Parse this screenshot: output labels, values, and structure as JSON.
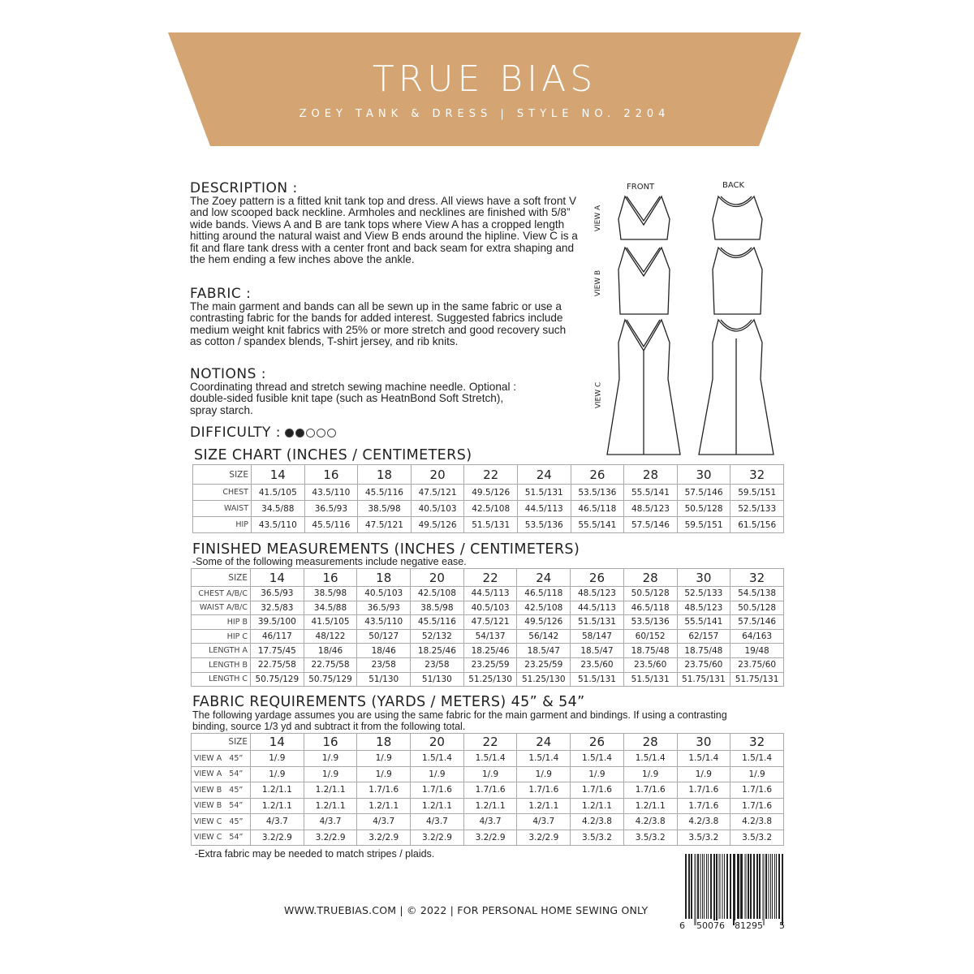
{
  "header": {
    "brand": "TRUE BIAS",
    "subtitle": "ZOEY TANK & DRESS | STYLE NO. 2204",
    "color": "#d4a473"
  },
  "description": {
    "heading": "DESCRIPTION :",
    "text": "The Zoey pattern is a fitted knit tank top and dress. All views have a soft front V and low scooped back neckline. Armholes and necklines are finished with 5/8” wide bands. Views A and B are tank tops where View A has a cropped length hitting around the natural waist and View B ends around the hipline. View C is a fit and flare tank dress with a center front and back seam for extra shaping and the hem ending a few inches above the ankle."
  },
  "fabric": {
    "heading": "FABRIC :",
    "text": "The main garment and bands can all be sewn up in the same fabric or use a contrasting fabric for the bands for added interest. Suggested fabrics include medium weight knit fabrics with 25% or more stretch and good recovery such as cotton / spandex blends, T-shirt jersey, and rib knits."
  },
  "notions": {
    "heading": "NOTIONS :",
    "text": "Coordinating thread and stretch sewing machine needle. Optional : double-sided fusible knit tape (such as HeatnBond Soft Stretch), spray starch."
  },
  "difficulty": {
    "label": "DIFFICULTY :",
    "level": 2,
    "max": 5
  },
  "illustrations": {
    "front": "FRONT",
    "back": "BACK",
    "views": [
      "VIEW A",
      "VIEW B",
      "VIEW C"
    ]
  },
  "size_chart": {
    "title": "SIZE CHART (INCHES / CENTIMETERS)",
    "header": [
      "SIZE",
      "14",
      "16",
      "18",
      "20",
      "22",
      "24",
      "26",
      "28",
      "30",
      "32"
    ],
    "rows": [
      [
        "CHEST",
        "41.5/105",
        "43.5/110",
        "45.5/116",
        "47.5/121",
        "49.5/126",
        "51.5/131",
        "53.5/136",
        "55.5/141",
        "57.5/146",
        "59.5/151"
      ],
      [
        "WAIST",
        "34.5/88",
        "36.5/93",
        "38.5/98",
        "40.5/103",
        "42.5/108",
        "44.5/113",
        "46.5/118",
        "48.5/123",
        "50.5/128",
        "52.5/133"
      ],
      [
        "HIP",
        "43.5/110",
        "45.5/116",
        "47.5/121",
        "49.5/126",
        "51.5/131",
        "53.5/136",
        "55.5/141",
        "57.5/146",
        "59.5/151",
        "61.5/156"
      ]
    ]
  },
  "finished": {
    "title": "FINISHED MEASUREMENTS (INCHES / CENTIMETERS)",
    "note": "-Some of the following measurements include negative ease.",
    "header": [
      "SIZE",
      "14",
      "16",
      "18",
      "20",
      "22",
      "24",
      "26",
      "28",
      "30",
      "32"
    ],
    "rows": [
      [
        "CHEST A/B/C",
        "36.5/93",
        "38.5/98",
        "40.5/103",
        "42.5/108",
        "44.5/113",
        "46.5/118",
        "48.5/123",
        "50.5/128",
        "52.5/133",
        "54.5/138"
      ],
      [
        "WAIST A/B/C",
        "32.5/83",
        "34.5/88",
        "36.5/93",
        "38.5/98",
        "40.5/103",
        "42.5/108",
        "44.5/113",
        "46.5/118",
        "48.5/123",
        "50.5/128"
      ],
      [
        "HIP B",
        "39.5/100",
        "41.5/105",
        "43.5/110",
        "45.5/116",
        "47.5/121",
        "49.5/126",
        "51.5/131",
        "53.5/136",
        "55.5/141",
        "57.5/146"
      ],
      [
        "HIP C",
        "46/117",
        "48/122",
        "50/127",
        "52/132",
        "54/137",
        "56/142",
        "58/147",
        "60/152",
        "62/157",
        "64/163"
      ],
      [
        "LENGTH A",
        "17.75/45",
        "18/46",
        "18/46",
        "18.25/46",
        "18.25/46",
        "18.5/47",
        "18.5/47",
        "18.75/48",
        "18.75/48",
        "19/48"
      ],
      [
        "LENGTH B",
        "22.75/58",
        "22.75/58",
        "23/58",
        "23/58",
        "23.25/59",
        "23.25/59",
        "23.5/60",
        "23.5/60",
        "23.75/60",
        "23.75/60"
      ],
      [
        "LENGTH C",
        "50.75/129",
        "50.75/129",
        "51/130",
        "51/130",
        "51.25/130",
        "51.25/130",
        "51.5/131",
        "51.5/131",
        "51.75/131",
        "51.75/131"
      ]
    ]
  },
  "fabric_req": {
    "title": "FABRIC REQUIREMENTS (YARDS / METERS) 45” & 54”",
    "note": "The following yardage assumes you are using the same fabric for the main garment and bindings. If using a contrasting binding, source 1/3 yd and subtract it from the following total.",
    "footnote": "-Extra fabric may be needed to match stripes / plaids.",
    "header": [
      "SIZE",
      "14",
      "16",
      "18",
      "20",
      "22",
      "24",
      "26",
      "28",
      "30",
      "32"
    ],
    "rows": [
      [
        "VIEW A   45”",
        "1/.9",
        "1/.9",
        "1/.9",
        "1.5/1.4",
        "1.5/1.4",
        "1.5/1.4",
        "1.5/1.4",
        "1.5/1.4",
        "1.5/1.4",
        "1.5/1.4"
      ],
      [
        "VIEW A   54”",
        "1/.9",
        "1/.9",
        "1/.9",
        "1/.9",
        "1/.9",
        "1/.9",
        "1/.9",
        "1/.9",
        "1/.9",
        "1/.9"
      ],
      [
        "VIEW B   45”",
        "1.2/1.1",
        "1.2/1.1",
        "1.7/1.6",
        "1.7/1.6",
        "1.7/1.6",
        "1.7/1.6",
        "1.7/1.6",
        "1.7/1.6",
        "1.7/1.6",
        "1.7/1.6"
      ],
      [
        "VIEW B   54”",
        "1.2/1.1",
        "1.2/1.1",
        "1.2/1.1",
        "1.2/1.1",
        "1.2/1.1",
        "1.2/1.1",
        "1.2/1.1",
        "1.2/1.1",
        "1.7/1.6",
        "1.7/1.6"
      ],
      [
        "VIEW C   45”",
        "4/3.7",
        "4/3.7",
        "4/3.7",
        "4/3.7",
        "4/3.7",
        "4/3.7",
        "4.2/3.8",
        "4.2/3.8",
        "4.2/3.8",
        "4.2/3.8"
      ],
      [
        "VIEW C   54”",
        "3.2/2.9",
        "3.2/2.9",
        "3.2/2.9",
        "3.2/2.9",
        "3.2/2.9",
        "3.2/2.9",
        "3.5/3.2",
        "3.5/3.2",
        "3.5/3.2",
        "3.5/3.2"
      ]
    ]
  },
  "footer": {
    "text": "WWW.TRUEBIAS.COM | © 2022 | FOR PERSONAL HOME SEWING ONLY"
  },
  "barcode": {
    "digits": [
      "6",
      "50076",
      "81295",
      "5"
    ]
  }
}
